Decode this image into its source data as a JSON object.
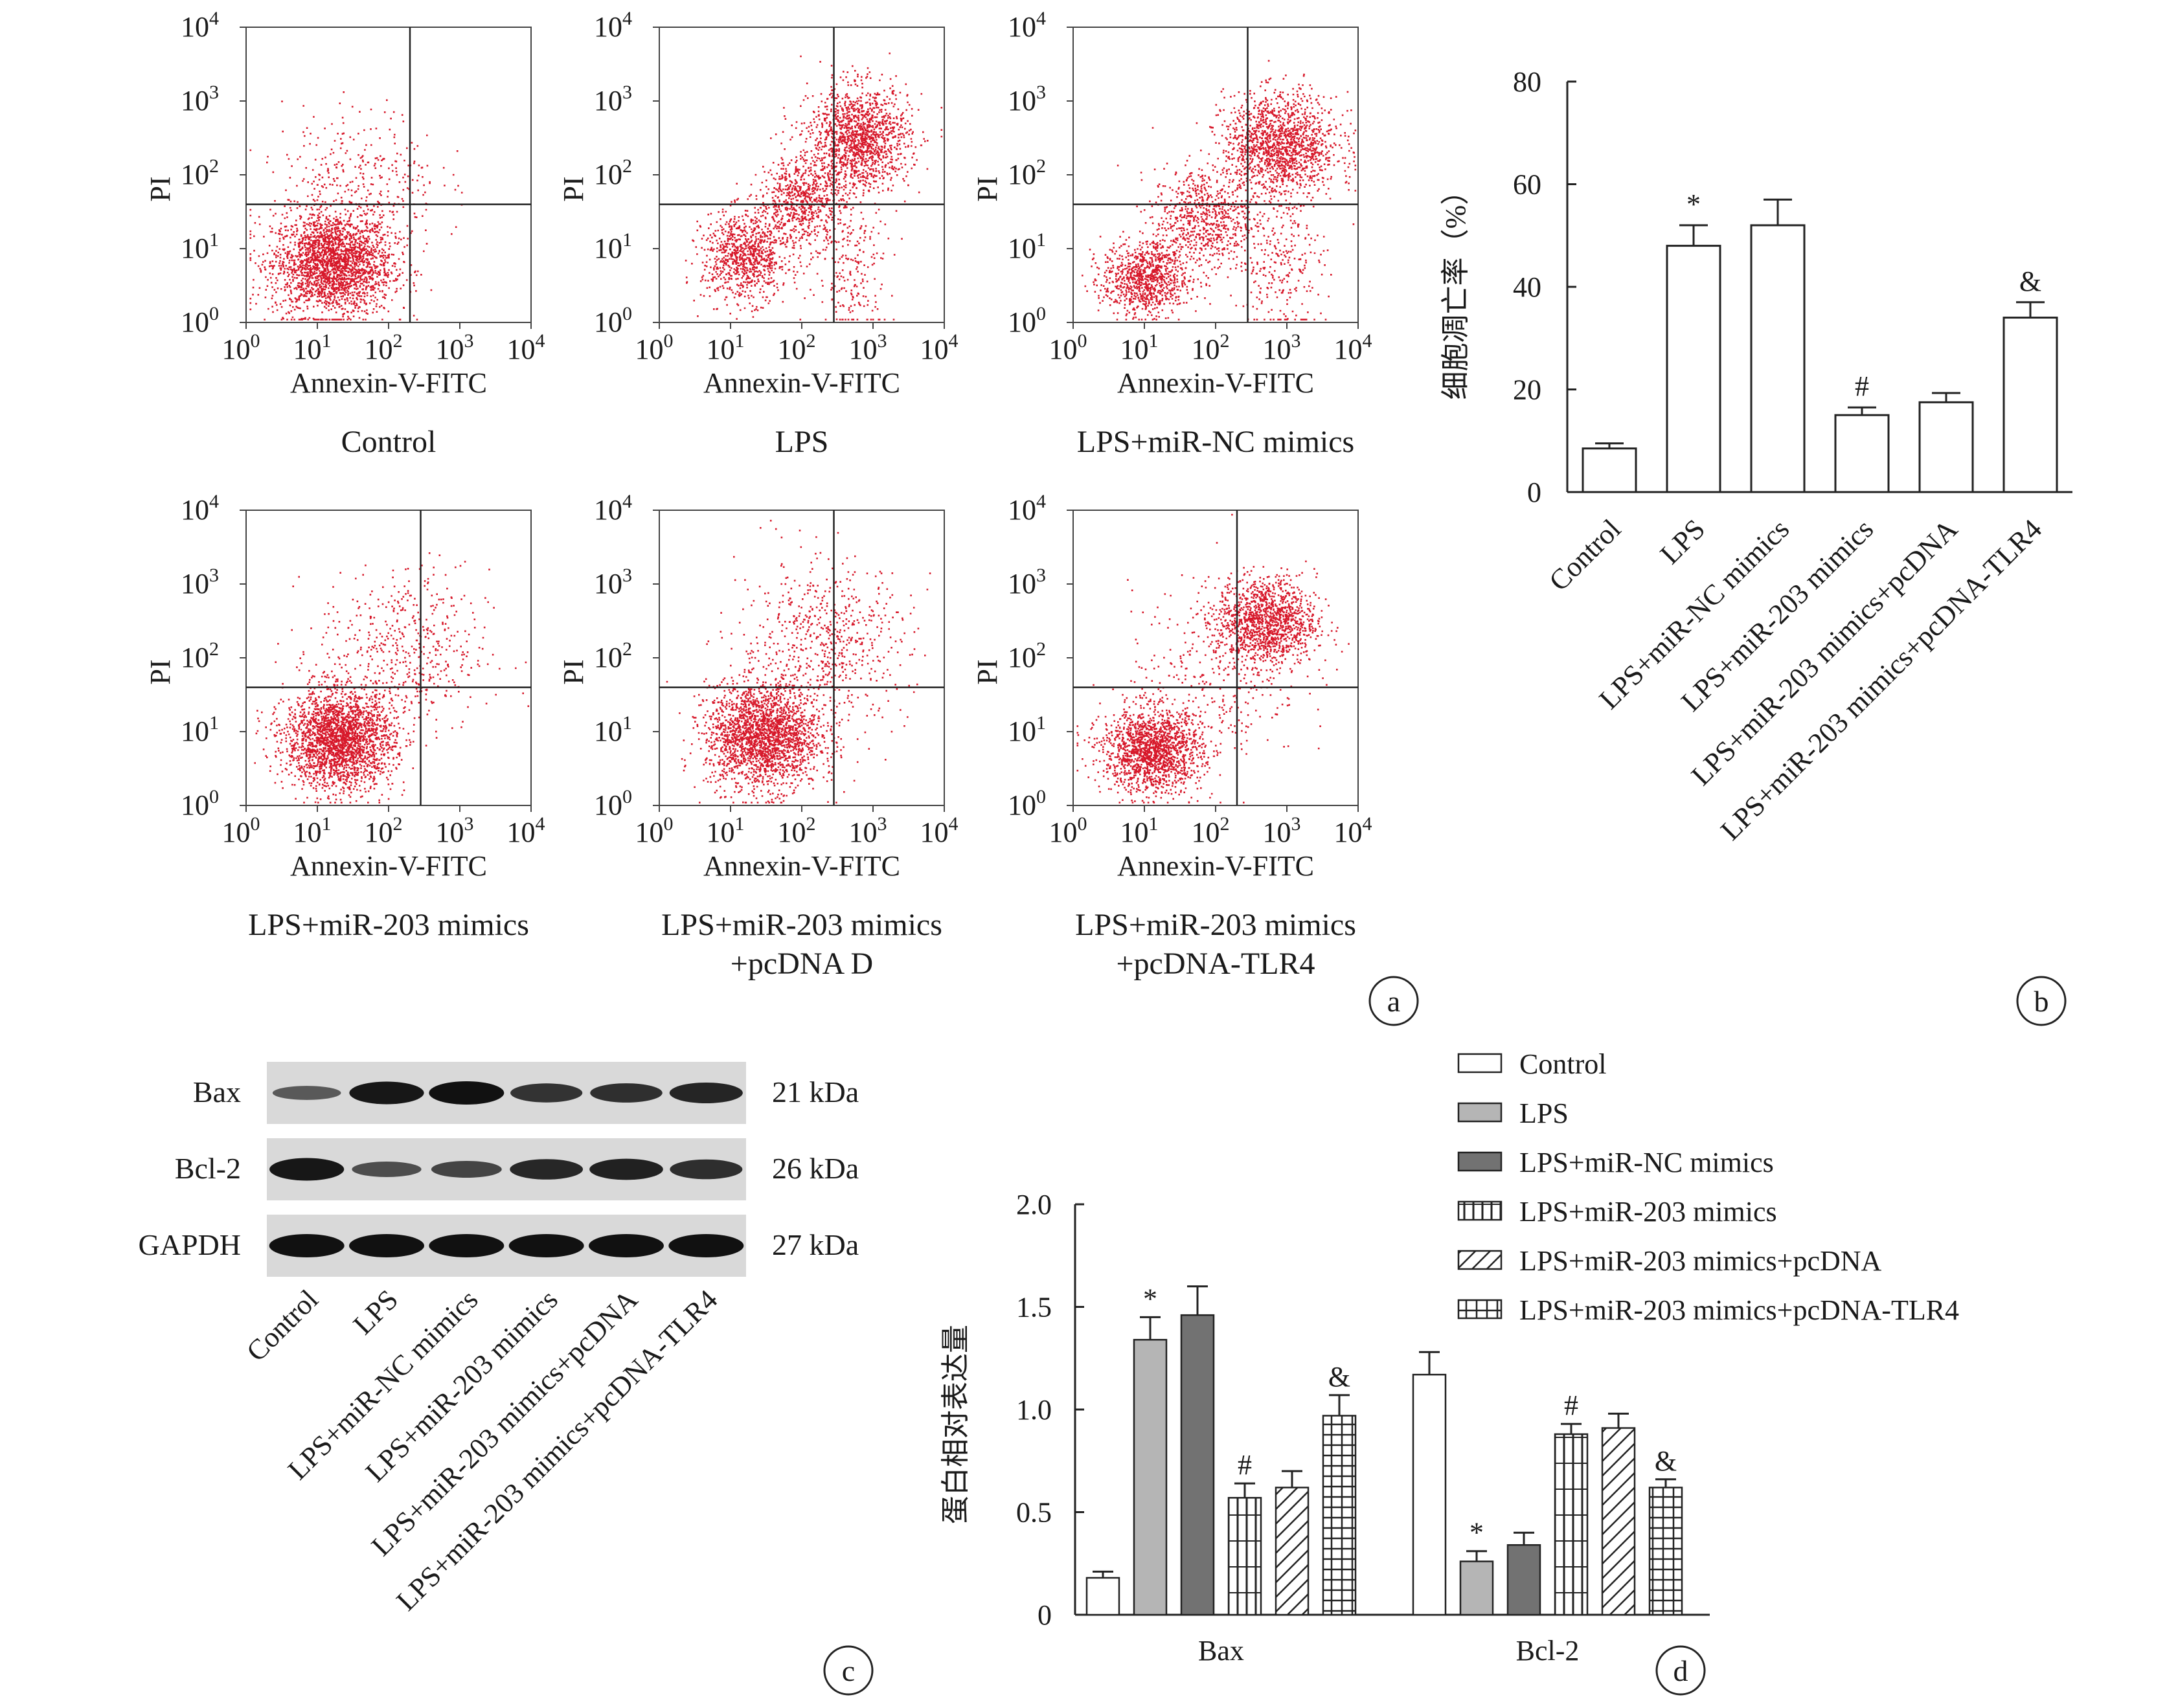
{
  "panels": {
    "a": "a",
    "b": "b",
    "c": "c",
    "d": "d"
  },
  "flow": {
    "xlabel": "Annexin-V-FITC",
    "ylabel": "PI",
    "ticks": [
      {
        "base": "10",
        "exp": "0"
      },
      {
        "base": "10",
        "exp": "1"
      },
      {
        "base": "10",
        "exp": "2"
      },
      {
        "base": "10",
        "exp": "3"
      },
      {
        "base": "10",
        "exp": "4"
      }
    ],
    "plots": [
      {
        "caption": "Control",
        "caption2": "",
        "gate": {
          "x": 2.3,
          "y": 1.6
        },
        "clusters": [
          {
            "cx": 1.2,
            "cy": 0.8,
            "sx": 0.42,
            "sy": 0.35,
            "n": 2400
          },
          {
            "cx": 1.6,
            "cy": 1.9,
            "sx": 0.55,
            "sy": 0.5,
            "n": 350
          }
        ]
      },
      {
        "caption": "LPS",
        "caption2": "",
        "gate": {
          "x": 2.45,
          "y": 1.6
        },
        "clusters": [
          {
            "cx": 1.2,
            "cy": 0.9,
            "sx": 0.3,
            "sy": 0.3,
            "n": 900
          },
          {
            "cx": 2.0,
            "cy": 1.65,
            "sx": 0.3,
            "sy": 0.3,
            "n": 700
          },
          {
            "cx": 2.8,
            "cy": 2.5,
            "sx": 0.35,
            "sy": 0.35,
            "n": 1400
          },
          {
            "cx": 2.7,
            "cy": 0.7,
            "sx": 0.25,
            "sy": 0.5,
            "n": 200
          }
        ]
      },
      {
        "caption": "LPS+miR-NC mimics",
        "caption2": "",
        "gate": {
          "x": 2.45,
          "y": 1.6
        },
        "clusters": [
          {
            "cx": 1.0,
            "cy": 0.6,
            "sx": 0.3,
            "sy": 0.25,
            "n": 900
          },
          {
            "cx": 1.8,
            "cy": 1.4,
            "sx": 0.35,
            "sy": 0.35,
            "n": 700
          },
          {
            "cx": 2.9,
            "cy": 2.4,
            "sx": 0.4,
            "sy": 0.35,
            "n": 1500
          },
          {
            "cx": 2.9,
            "cy": 0.8,
            "sx": 0.3,
            "sy": 0.5,
            "n": 250
          }
        ]
      },
      {
        "caption": "LPS+miR-203 mimics",
        "caption2": "",
        "gate": {
          "x": 2.45,
          "y": 1.6
        },
        "clusters": [
          {
            "cx": 1.3,
            "cy": 0.9,
            "sx": 0.38,
            "sy": 0.33,
            "n": 2400
          },
          {
            "cx": 2.2,
            "cy": 2.1,
            "sx": 0.6,
            "sy": 0.55,
            "n": 500
          }
        ]
      },
      {
        "caption": "LPS+miR-203 mimics",
        "caption2": "+pcDNA D",
        "gate": {
          "x": 2.45,
          "y": 1.6
        },
        "clusters": [
          {
            "cx": 1.45,
            "cy": 0.95,
            "sx": 0.4,
            "sy": 0.35,
            "n": 2200
          },
          {
            "cx": 2.3,
            "cy": 2.2,
            "sx": 0.6,
            "sy": 0.55,
            "n": 650
          }
        ]
      },
      {
        "caption": "LPS+miR-203 mimics",
        "caption2": "+pcDNA-TLR4",
        "gate": {
          "x": 2.3,
          "y": 1.6
        },
        "clusters": [
          {
            "cx": 1.1,
            "cy": 0.75,
            "sx": 0.35,
            "sy": 0.28,
            "n": 1600
          },
          {
            "cx": 2.7,
            "cy": 2.5,
            "sx": 0.35,
            "sy": 0.3,
            "n": 1300
          },
          {
            "cx": 2.0,
            "cy": 1.8,
            "sx": 0.6,
            "sy": 0.6,
            "n": 300
          }
        ]
      }
    ]
  },
  "blot": {
    "rows": [
      {
        "name": "Bax",
        "size": "21 kDa",
        "intensity": [
          0.35,
          0.95,
          1.0,
          0.7,
          0.72,
          0.82
        ]
      },
      {
        "name": "Bcl-2",
        "size": "26 kDa",
        "intensity": [
          0.95,
          0.45,
          0.55,
          0.8,
          0.85,
          0.75
        ]
      },
      {
        "name": "GAPDH",
        "size": "27 kDa",
        "intensity": [
          1.0,
          1.0,
          1.0,
          1.0,
          1.0,
          1.0
        ]
      }
    ],
    "lanes": [
      "Control",
      "LPS",
      "LPS+miR-NC mimics",
      "LPS+miR-203 mimics",
      "LPS+miR-203 mimics+pcDNA",
      "LPS+miR-203 mimics+pcDNA-TLR4"
    ]
  },
  "chart_data": [
    {
      "type": "bar",
      "ylabel": "细胞凋亡率（%）",
      "ylim": [
        0,
        80
      ],
      "yticks": [
        "0",
        "20",
        "40",
        "60",
        "80"
      ],
      "categories": [
        "Control",
        "LPS",
        "LPS+miR-NC mimics",
        "LPS+miR-203 mimics",
        "LPS+miR-203 mimics+pcDNA",
        "LPS+miR-203 mimics+pcDNA-TLR4"
      ],
      "values": [
        8.5,
        48,
        52,
        15,
        17.5,
        34
      ],
      "errors": [
        1.0,
        4.0,
        5.0,
        1.5,
        1.8,
        3.0
      ],
      "marks": [
        "",
        "*",
        "",
        "#",
        "",
        "&"
      ]
    },
    {
      "type": "bar",
      "ylabel": "蛋白相对表达量",
      "ylim": [
        0,
        2.0
      ],
      "yticks": [
        "0",
        "0.5",
        "1.0",
        "1.5",
        "2.0"
      ],
      "categories": [
        "Bax",
        "Bcl-2"
      ],
      "series": [
        {
          "name": "Control",
          "values": [
            0.18,
            1.17
          ],
          "errors": [
            0.03,
            0.11
          ],
          "marks": [
            "",
            ""
          ],
          "fill": "#ffffff",
          "pattern": "none"
        },
        {
          "name": "LPS",
          "values": [
            1.34,
            0.26
          ],
          "errors": [
            0.11,
            0.05
          ],
          "marks": [
            "*",
            "*"
          ],
          "fill": "#b5b5b5",
          "pattern": "none"
        },
        {
          "name": "LPS+miR-NC mimics",
          "values": [
            1.46,
            0.34
          ],
          "errors": [
            0.14,
            0.06
          ],
          "marks": [
            "",
            ""
          ],
          "fill": "#727272",
          "pattern": "none"
        },
        {
          "name": "LPS+miR-203 mimics",
          "values": [
            0.57,
            0.88
          ],
          "errors": [
            0.07,
            0.05
          ],
          "marks": [
            "#",
            "#"
          ],
          "fill": "#ffffff",
          "pattern": "vlines"
        },
        {
          "name": "LPS+miR-203 mimics+pcDNA",
          "values": [
            0.62,
            0.91
          ],
          "errors": [
            0.08,
            0.07
          ],
          "marks": [
            "",
            ""
          ],
          "fill": "#ffffff",
          "pattern": "diag"
        },
        {
          "name": "LPS+miR-203 mimics+pcDNA-TLR4",
          "values": [
            0.97,
            0.62
          ],
          "errors": [
            0.1,
            0.04
          ],
          "marks": [
            "&",
            "&"
          ],
          "fill": "#ffffff",
          "pattern": "grid"
        }
      ]
    }
  ]
}
